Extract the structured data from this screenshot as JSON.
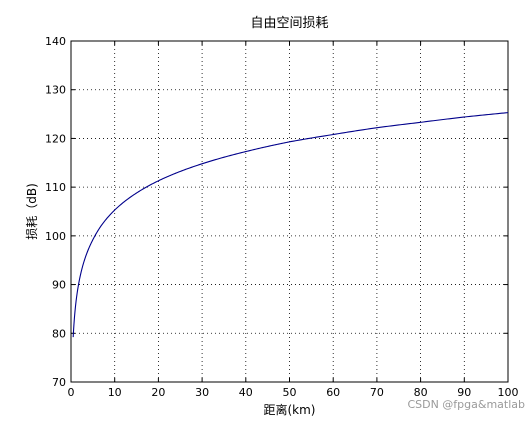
{
  "chart_data": {
    "type": "line",
    "title": "自由空间损耗",
    "xlabel": "距离(km)",
    "ylabel": "损耗（dB)",
    "xlim": [
      0,
      100
    ],
    "ylim": [
      70,
      140
    ],
    "xticks": [
      0,
      10,
      20,
      30,
      40,
      50,
      60,
      70,
      80,
      90,
      100
    ],
    "yticks": [
      70,
      80,
      90,
      100,
      110,
      120,
      130,
      140
    ],
    "grid": true,
    "grid_style": "dotted",
    "line_color": "#00008b",
    "series": [
      {
        "x": [
          0.5,
          1,
          2,
          3,
          5,
          7,
          10,
          15,
          20,
          30,
          40,
          50,
          60,
          70,
          80,
          90,
          100
        ],
        "values": [
          79.2,
          85.3,
          91.3,
          94.8,
          99.2,
          102.2,
          105.3,
          108.8,
          111.3,
          114.8,
          117.3,
          119.3,
          120.8,
          122.2,
          123.3,
          124.4,
          125.3
        ]
      }
    ]
  },
  "watermark": "CSDN @fpga&matlab"
}
